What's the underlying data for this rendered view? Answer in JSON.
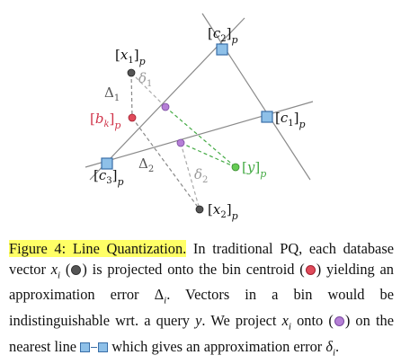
{
  "figure": {
    "labels": {
      "c1": "[c1]p",
      "c2": "[c2]p",
      "c3": "[c3]p",
      "x1": "[x1]p",
      "x2": "[x2]p",
      "bk": "[bk]p",
      "y": "[y]p",
      "delta1": "Δ1",
      "delta2": "Δ2",
      "small_delta1": "δ1",
      "small_delta2": "δ2"
    },
    "colors": {
      "centroid_fill": "#8ec0e8",
      "centroid_stroke": "#3a6fa8",
      "database_point": "#555555",
      "bin_centroid": "#e04a5a",
      "projection": "#b57fd6",
      "query": "#66cc55",
      "query_line": "#44aa44",
      "bin_label": "#d0344a",
      "query_label": "#44aa44",
      "delta_small_label": "#999999"
    }
  },
  "caption": {
    "figure_label": "Figure 4: Line Quantization.",
    "body": "In traditional PQ, each database vector xi is projected onto the bin centroid yielding an approximation error Δi. Vectors in a bin would be indistinguishable wrt. a query y. We project xi onto on the nearest line which gives an approximation error δi."
  }
}
